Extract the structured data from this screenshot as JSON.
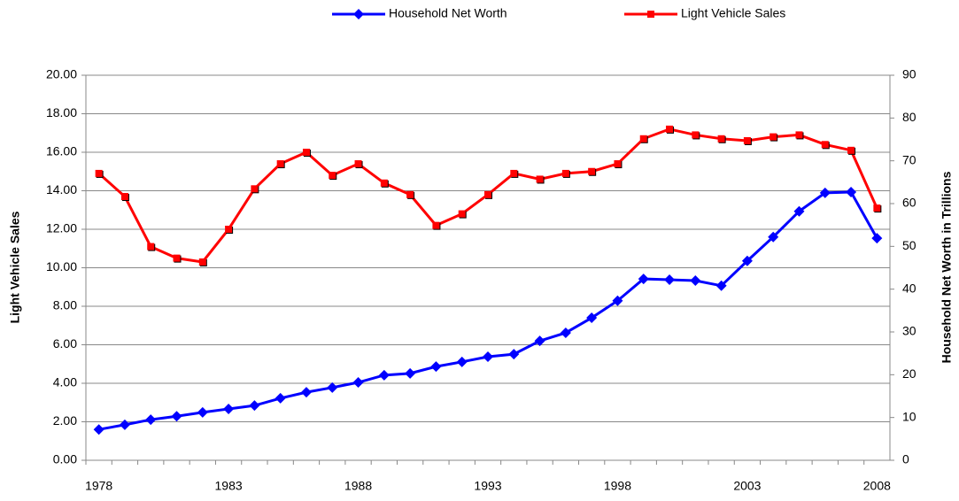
{
  "chart_data": {
    "type": "line",
    "categories": [
      "1978",
      null,
      null,
      null,
      null,
      "1983",
      null,
      null,
      null,
      null,
      "1988",
      null,
      null,
      null,
      null,
      "1993",
      null,
      null,
      null,
      null,
      "1998",
      null,
      null,
      null,
      null,
      "2003",
      null,
      null,
      null,
      null,
      "2008"
    ],
    "ylabel": "Light Vehicle Sales",
    "y2label": "Household Net Worth in Trillions",
    "ylim": [
      0,
      20
    ],
    "yticks": [
      {
        "value": 0,
        "label": "0.00"
      },
      {
        "value": 2,
        "label": "2.00"
      },
      {
        "value": 4,
        "label": "4.00"
      },
      {
        "value": 6,
        "label": "6.00"
      },
      {
        "value": 8,
        "label": "8.00"
      },
      {
        "value": 10,
        "label": "10.00"
      },
      {
        "value": 12,
        "label": "12.00"
      },
      {
        "value": 14,
        "label": "14.00"
      },
      {
        "value": 16,
        "label": "16.00"
      },
      {
        "value": 18,
        "label": "18.00"
      },
      {
        "value": 20,
        "label": "20.00"
      }
    ],
    "y2lim": [
      0,
      90
    ],
    "y2ticks": [
      0,
      10,
      20,
      30,
      40,
      50,
      60,
      70,
      80,
      90
    ],
    "grid": true,
    "legend": "top",
    "series": [
      {
        "name": "Household Net Worth",
        "color": "#0000ff",
        "marker": "diamond",
        "axis": "y2",
        "values": [
          7.2,
          8.3,
          9.5,
          10.3,
          11.2,
          12.0,
          12.8,
          14.5,
          15.9,
          17.0,
          18.2,
          19.9,
          20.3,
          21.9,
          23.0,
          24.2,
          24.8,
          27.9,
          29.8,
          33.3,
          37.3,
          42.4,
          42.2,
          42.0,
          40.8,
          46.6,
          52.2,
          58.2,
          62.5,
          62.7,
          51.9
        ]
      },
      {
        "name": "Light Vehicle Sales",
        "color": "#ff0000",
        "marker": "square",
        "values": [
          14.9,
          13.7,
          11.1,
          10.5,
          10.3,
          12.0,
          14.1,
          15.4,
          16.0,
          14.8,
          15.4,
          14.4,
          13.8,
          12.2,
          12.8,
          13.8,
          14.9,
          14.6,
          14.9,
          15.0,
          15.4,
          16.7,
          17.2,
          16.9,
          16.7,
          16.6,
          16.8,
          16.9,
          16.4,
          16.1,
          13.1
        ]
      }
    ]
  }
}
